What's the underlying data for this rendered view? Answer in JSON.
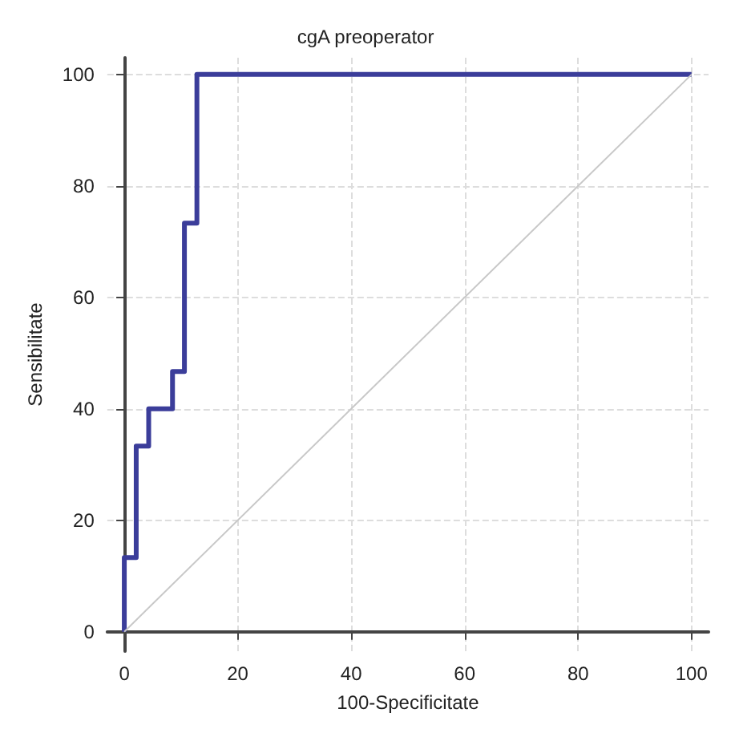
{
  "chart_data": {
    "type": "line",
    "title": "cgA preoperator",
    "xlabel": "100-Specificitate",
    "ylabel": "Sensibilitate",
    "xlim": [
      -3,
      103
    ],
    "ylim": [
      -3.5,
      103
    ],
    "xticks": [
      0,
      20,
      40,
      60,
      80,
      100
    ],
    "yticks": [
      0,
      20,
      40,
      60,
      80,
      100
    ],
    "grid": true,
    "marker": "none",
    "series": [
      {
        "color": "#3b3d9a",
        "x": [
          0,
          0,
          2.1,
          2.1,
          4.3,
          4.3,
          8.5,
          8.5,
          10.6,
          10.6,
          12.8,
          12.8,
          100
        ],
        "values": [
          0,
          13.3,
          13.3,
          33.3,
          33.3,
          40,
          40,
          46.7,
          46.7,
          73.3,
          73.3,
          100,
          100
        ]
      },
      {
        "color": "#c8c8c8",
        "x": [
          0,
          100
        ],
        "values": [
          0,
          100
        ]
      }
    ]
  }
}
